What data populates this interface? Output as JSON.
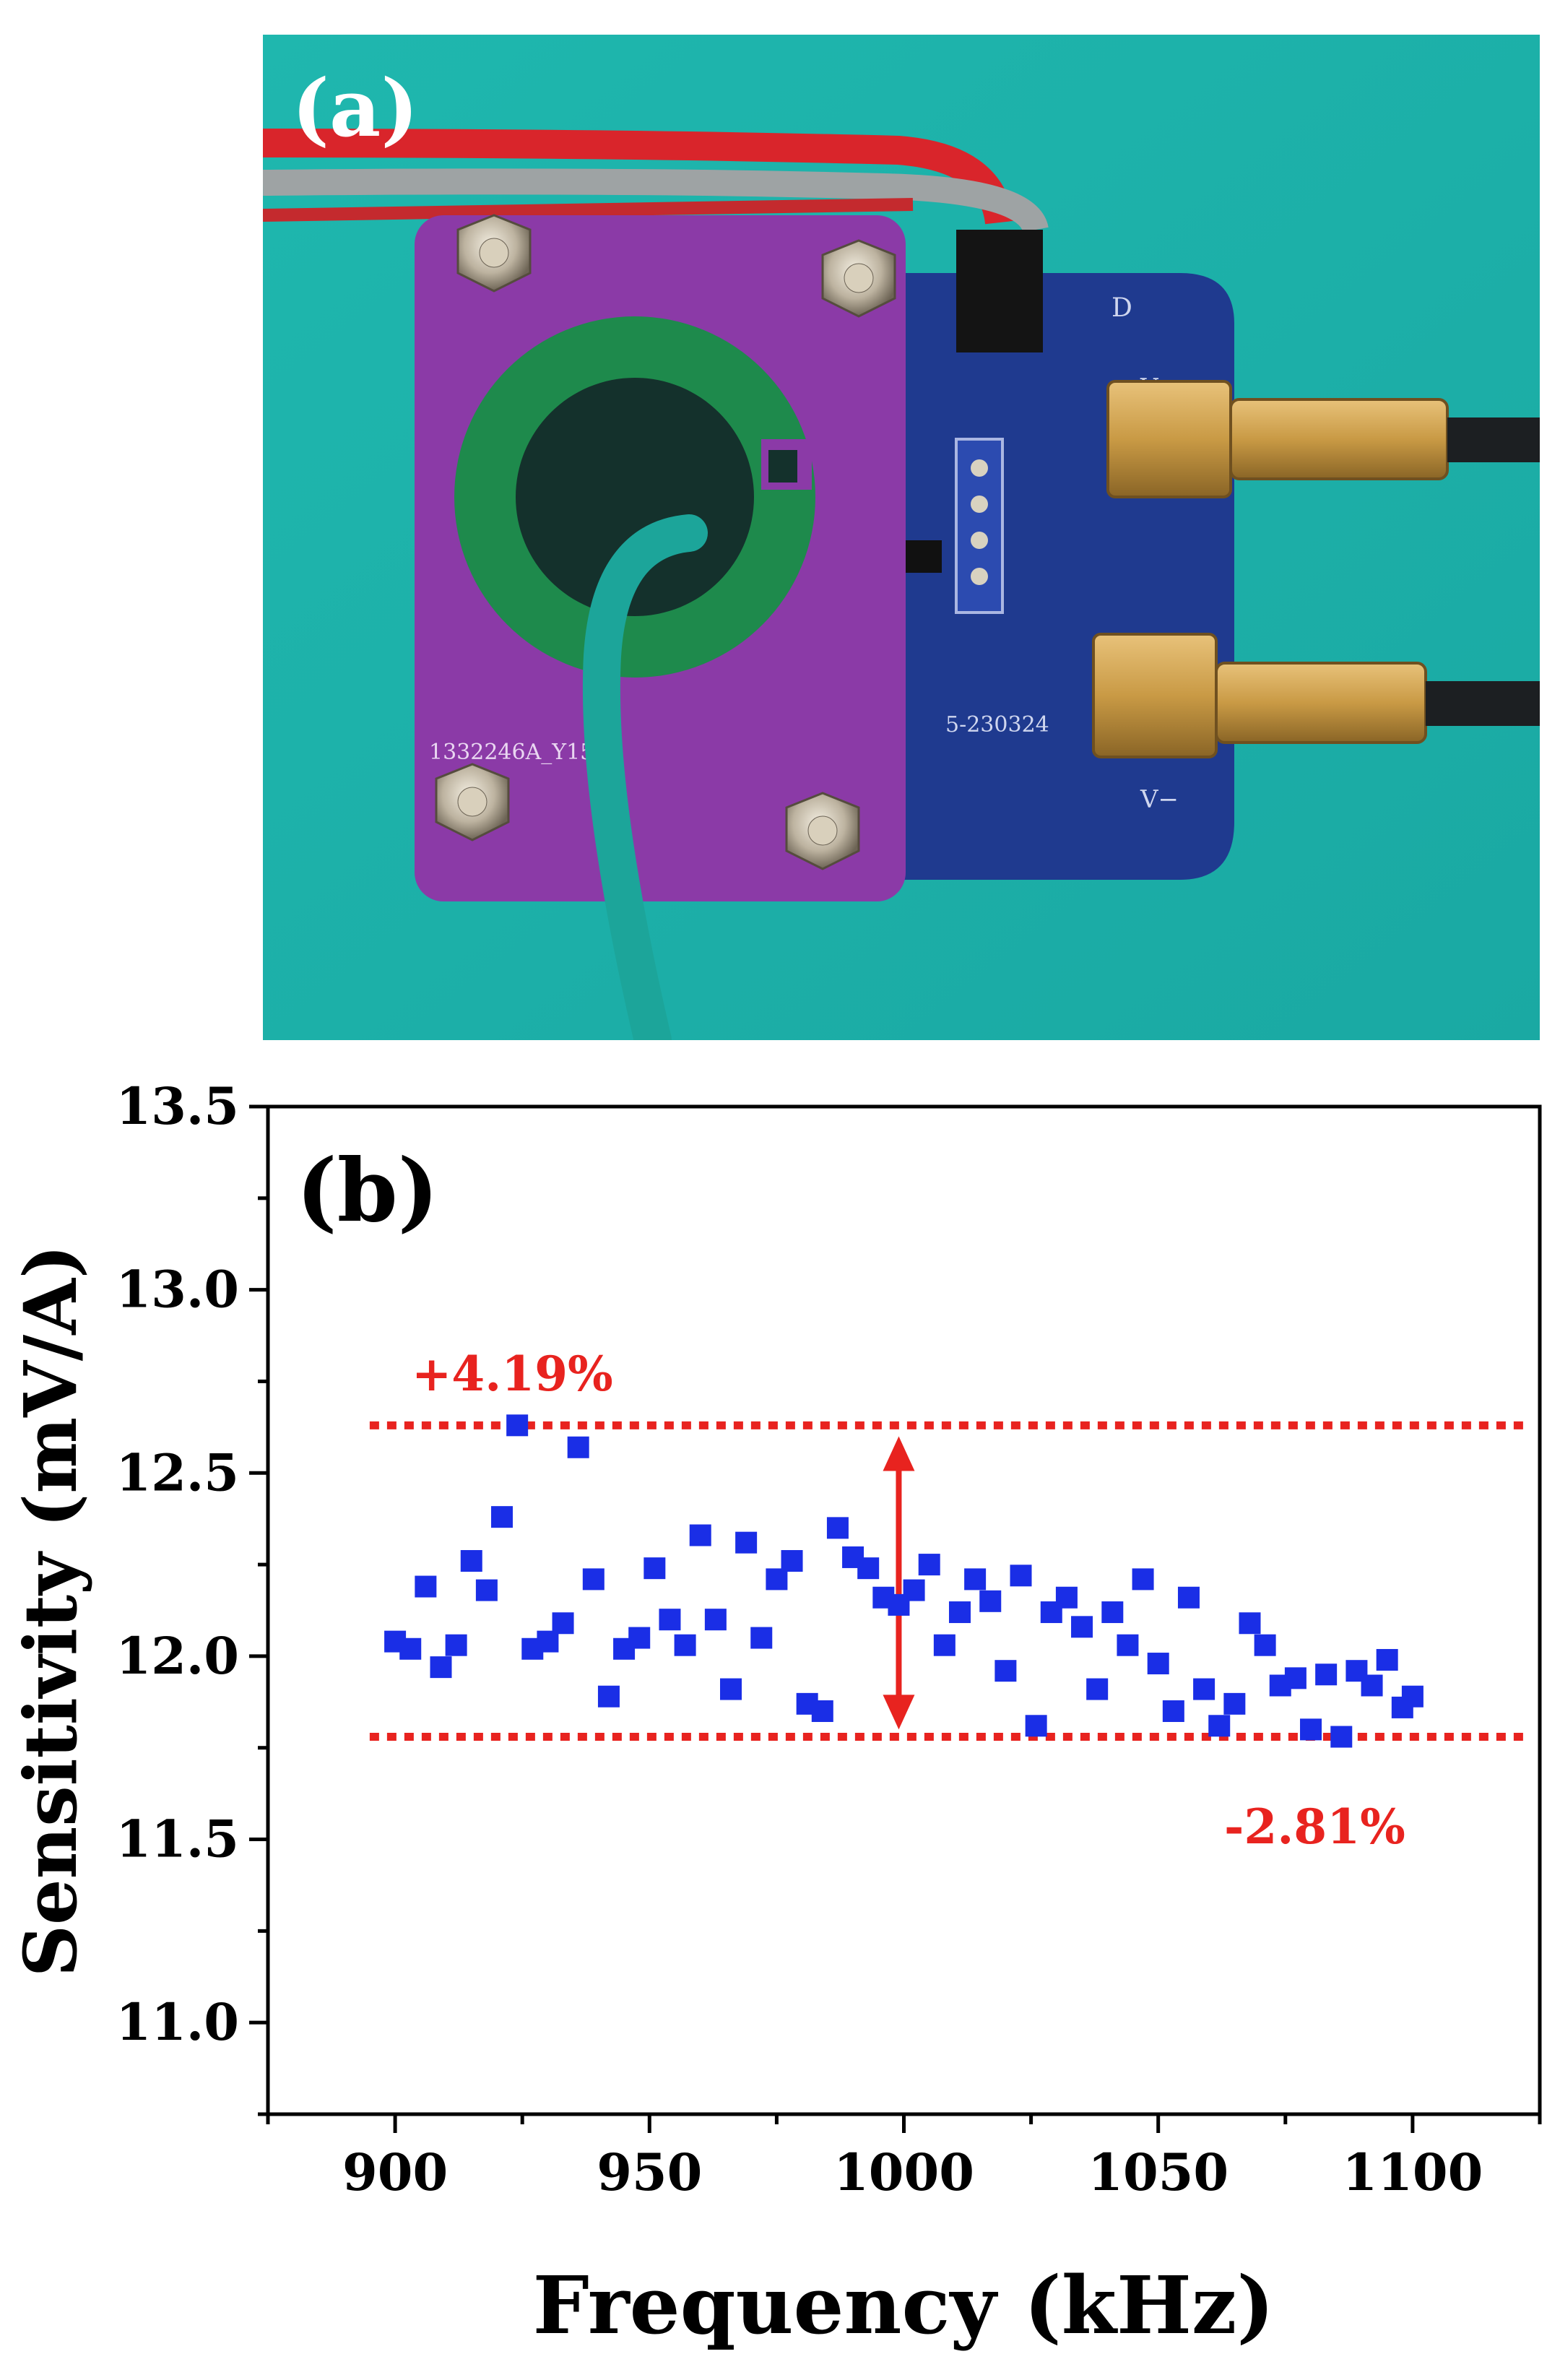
{
  "panel_a": {
    "label": "(a)",
    "board_silkscreen_left": "1332246A_Y15",
    "board_silkscreen_right": "5-230324",
    "connector_label_top": "V+",
    "connector_label_bottom": "V−",
    "power_label_left": "V",
    "power_label_right": "D",
    "colors": {
      "background": "#1eb8b0",
      "purple_board": "#8a3aa8",
      "blue_board": "#1f3a8f",
      "core": "#1e8a4c"
    }
  },
  "chart_data": {
    "type": "scatter",
    "panel_label": "(b)",
    "xlabel": "Frequency (kHz)",
    "ylabel": "Sensitivity (mV/A)",
    "xlim": [
      875,
      1125
    ],
    "ylim": [
      10.75,
      13.5
    ],
    "xticks": [
      900,
      950,
      1000,
      1050,
      1100
    ],
    "yticks": [
      11.0,
      11.5,
      12.0,
      12.5,
      13.0,
      13.5
    ],
    "grid": false,
    "marker_color": "#1a2ee6",
    "annotation_color": "#e8231f",
    "upper_line": {
      "y": 12.63,
      "label": "+4.19%"
    },
    "lower_line": {
      "y": 11.78,
      "label": "-2.81%"
    },
    "arrow": {
      "x": 999,
      "y_from": 11.8,
      "y_to": 12.6
    },
    "x": [
      900,
      903,
      906,
      909,
      912,
      915,
      918,
      921,
      924,
      927,
      930,
      933,
      936,
      939,
      942,
      945,
      948,
      951,
      954,
      957,
      960,
      963,
      966,
      969,
      972,
      975,
      978,
      981,
      984,
      987,
      990,
      993,
      996,
      999,
      1002,
      1005,
      1008,
      1011,
      1014,
      1017,
      1020,
      1023,
      1026,
      1029,
      1032,
      1035,
      1038,
      1041,
      1044,
      1047,
      1050,
      1053,
      1056,
      1059,
      1062,
      1065,
      1068,
      1071,
      1074,
      1077,
      1080,
      1083,
      1086,
      1089,
      1092,
      1095,
      1098,
      1100
    ],
    "y": [
      12.04,
      12.02,
      12.19,
      11.97,
      12.03,
      12.26,
      12.18,
      12.38,
      12.63,
      12.02,
      12.04,
      12.09,
      12.57,
      12.21,
      11.89,
      12.02,
      12.05,
      12.24,
      12.1,
      12.03,
      12.33,
      12.1,
      11.91,
      12.31,
      12.05,
      12.21,
      12.26,
      11.87,
      11.85,
      12.35,
      12.27,
      12.24,
      12.16,
      12.14,
      12.18,
      12.25,
      12.03,
      12.12,
      12.21,
      12.15,
      11.96,
      12.22,
      11.81,
      12.12,
      12.16,
      12.08,
      11.91,
      12.12,
      12.03,
      12.21,
      11.98,
      11.85,
      12.16,
      11.91,
      11.81,
      11.87,
      12.09,
      12.03,
      11.92,
      11.94,
      11.8,
      11.95,
      11.78,
      11.96,
      11.92,
      11.99,
      11.86,
      11.89
    ]
  }
}
